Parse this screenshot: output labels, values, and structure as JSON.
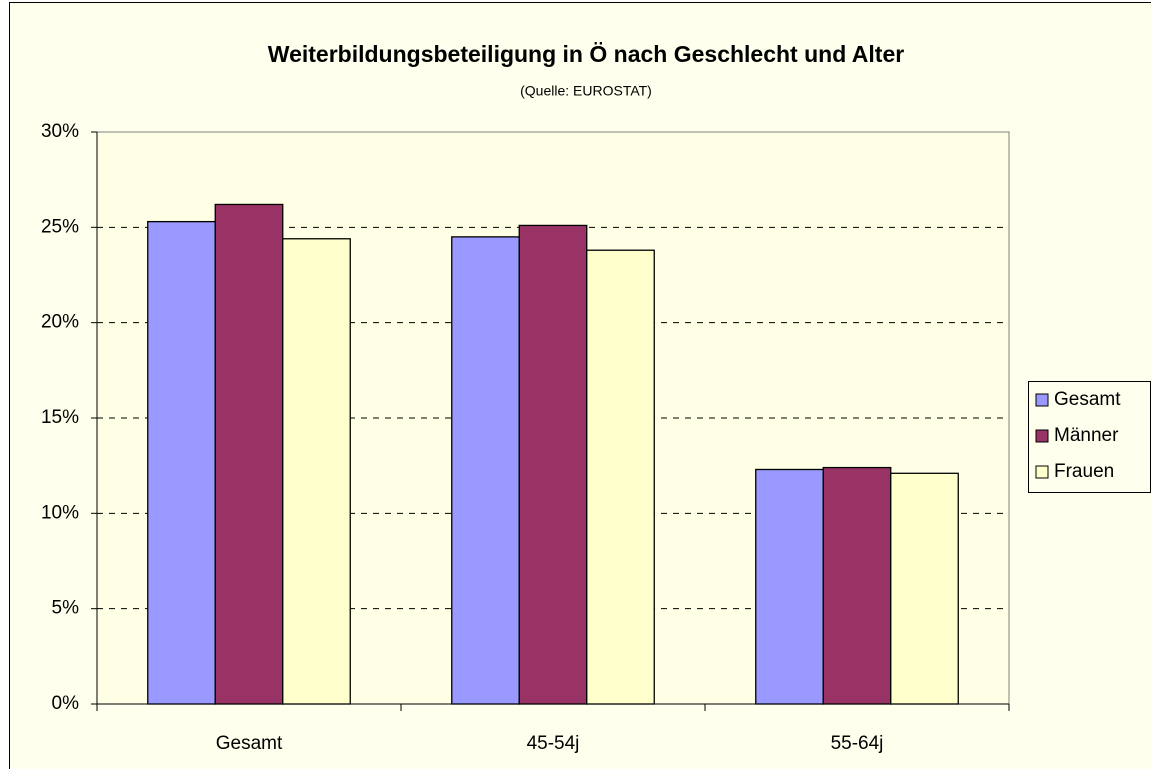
{
  "chart_data": {
    "type": "bar",
    "title": "Weiterbildungsbeteiligung in Ö nach Geschlecht und Alter",
    "subtitle": "(Quelle: EUROSTAT)",
    "categories": [
      "Gesamt",
      "45-54j",
      "55-64j"
    ],
    "series": [
      {
        "name": "Gesamt",
        "color": "#9999ff",
        "values": [
          25.3,
          24.5,
          12.3
        ]
      },
      {
        "name": "Männer",
        "color": "#993366",
        "values": [
          26.2,
          25.1,
          12.4
        ]
      },
      {
        "name": "Frauen",
        "color": "#ffffcc",
        "values": [
          24.4,
          23.8,
          12.1
        ]
      }
    ],
    "ylim": [
      0,
      30
    ],
    "yticks": [
      {
        "value": 0,
        "label": "0%"
      },
      {
        "value": 5,
        "label": "5%"
      },
      {
        "value": 10,
        "label": "10%"
      },
      {
        "value": 15,
        "label": "15%"
      },
      {
        "value": 20,
        "label": "20%"
      },
      {
        "value": 25,
        "label": "25%"
      },
      {
        "value": 30,
        "label": "30%"
      }
    ],
    "grid": true,
    "legend": "right"
  }
}
